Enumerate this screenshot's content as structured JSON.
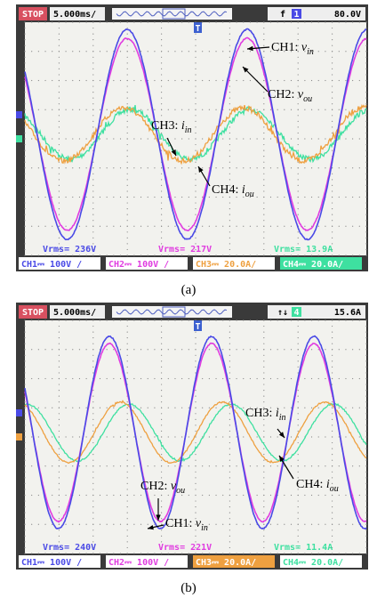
{
  "panels": [
    {
      "caption": "(a)",
      "status": "STOP",
      "timebase": "5.000ms/",
      "trigger_mode": "f",
      "trigger_source": "1",
      "trigger_level": "80.0V",
      "marker": "T",
      "rms": [
        "Vrms= 236V",
        "Vrms= 217V",
        "Vrms= 13.9A"
      ],
      "channels": [
        "CH1⎓ 100V /",
        "CH2⎓ 100V /",
        "CH3⎓ 20.0A/",
        "CH4⎓ 20.0A/"
      ],
      "annotations": [
        {
          "label": "CH1: ",
          "var": "v",
          "sub": "in"
        },
        {
          "label": "CH2: ",
          "var": "v",
          "sub": "ou"
        },
        {
          "label": "CH3: ",
          "var": "i",
          "sub": "in"
        },
        {
          "label": "CH4: ",
          "var": "i",
          "sub": "ou"
        }
      ]
    },
    {
      "caption": "(b)",
      "status": "STOP",
      "timebase": "5.000ms/",
      "trigger_mode": "↑↓",
      "trigger_source": "4",
      "trigger_level": "15.6A",
      "marker": "T",
      "rms": [
        "Vrms= 240V",
        "Vrms= 221V",
        "Vrms= 11.4A"
      ],
      "channels": [
        "CH1⎓ 100V /",
        "CH2⎓ 100V /",
        "CH3⎓ 20.0A/",
        "CH4⎓ 20.0A/"
      ],
      "annotations": [
        {
          "label": "CH3: ",
          "var": "i",
          "sub": "in"
        },
        {
          "label": "CH4: ",
          "var": "i",
          "sub": "ou"
        },
        {
          "label": "CH2: ",
          "var": "v",
          "sub": "ou"
        },
        {
          "label": "CH1: ",
          "var": "v",
          "sub": "in"
        }
      ]
    }
  ]
}
